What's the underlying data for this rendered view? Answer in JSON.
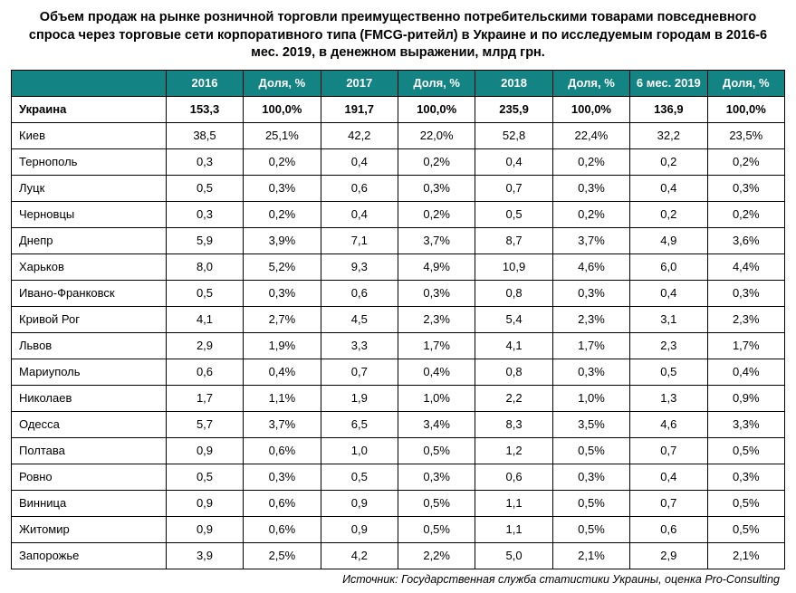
{
  "title": "Объем продаж на рынке розничной торговли преимущественно потребительскими товарами повседневного спроса через торговые сети корпоративного типа (FMCG-ритейл) в Украине и по исследуемым городам в 2016-6 мес. 2019, в денежном выражении, млрд грн.",
  "columns": [
    "",
    "2016",
    "Доля, %",
    "2017",
    "Доля, %",
    "2018",
    "Доля, %",
    "6 мес. 2019",
    "Доля, %"
  ],
  "total_row": {
    "label": "Украина",
    "cells": [
      "153,3",
      "100,0%",
      "191,7",
      "100,0%",
      "235,9",
      "100,0%",
      "136,9",
      "100,0%"
    ]
  },
  "rows": [
    {
      "label": "Киев",
      "cells": [
        "38,5",
        "25,1%",
        "42,2",
        "22,0%",
        "52,8",
        "22,4%",
        "32,2",
        "23,5%"
      ]
    },
    {
      "label": "Тернополь",
      "cells": [
        "0,3",
        "0,2%",
        "0,4",
        "0,2%",
        "0,4",
        "0,2%",
        "0,2",
        "0,2%"
      ]
    },
    {
      "label": "Луцк",
      "cells": [
        "0,5",
        "0,3%",
        "0,6",
        "0,3%",
        "0,7",
        "0,3%",
        "0,4",
        "0,3%"
      ]
    },
    {
      "label": "Черновцы",
      "cells": [
        "0,3",
        "0,2%",
        "0,4",
        "0,2%",
        "0,5",
        "0,2%",
        "0,2",
        "0,2%"
      ]
    },
    {
      "label": "Днепр",
      "cells": [
        "5,9",
        "3,9%",
        "7,1",
        "3,7%",
        "8,7",
        "3,7%",
        "4,9",
        "3,6%"
      ]
    },
    {
      "label": "Харьков",
      "cells": [
        "8,0",
        "5,2%",
        "9,3",
        "4,9%",
        "10,9",
        "4,6%",
        "6,0",
        "4,4%"
      ]
    },
    {
      "label": "Ивано-Франковск",
      "cells": [
        "0,5",
        "0,3%",
        "0,6",
        "0,3%",
        "0,8",
        "0,3%",
        "0,4",
        "0,3%"
      ]
    },
    {
      "label": "Кривой Рог",
      "cells": [
        "4,1",
        "2,7%",
        "4,5",
        "2,3%",
        "5,4",
        "2,3%",
        "3,1",
        "2,3%"
      ]
    },
    {
      "label": "Львов",
      "cells": [
        "2,9",
        "1,9%",
        "3,3",
        "1,7%",
        "4,1",
        "1,7%",
        "2,3",
        "1,7%"
      ]
    },
    {
      "label": "Мариуполь",
      "cells": [
        "0,6",
        "0,4%",
        "0,7",
        "0,4%",
        "0,8",
        "0,3%",
        "0,5",
        "0,4%"
      ]
    },
    {
      "label": "Николаев",
      "cells": [
        "1,7",
        "1,1%",
        "1,9",
        "1,0%",
        "2,2",
        "1,0%",
        "1,3",
        "0,9%"
      ]
    },
    {
      "label": "Одесса",
      "cells": [
        "5,7",
        "3,7%",
        "6,5",
        "3,4%",
        "8,3",
        "3,5%",
        "4,6",
        "3,3%"
      ]
    },
    {
      "label": "Полтава",
      "cells": [
        "0,9",
        "0,6%",
        "1,0",
        "0,5%",
        "1,2",
        "0,5%",
        "0,7",
        "0,5%"
      ]
    },
    {
      "label": "Ровно",
      "cells": [
        "0,5",
        "0,3%",
        "0,5",
        "0,3%",
        "0,6",
        "0,3%",
        "0,4",
        "0,3%"
      ]
    },
    {
      "label": "Винница",
      "cells": [
        "0,9",
        "0,6%",
        "0,9",
        "0,5%",
        "1,1",
        "0,5%",
        "0,7",
        "0,5%"
      ]
    },
    {
      "label": "Житомир",
      "cells": [
        "0,9",
        "0,6%",
        "0,9",
        "0,5%",
        "1,1",
        "0,5%",
        "0,6",
        "0,5%"
      ]
    },
    {
      "label": "Запорожье",
      "cells": [
        "3,9",
        "2,5%",
        "4,2",
        "2,2%",
        "5,0",
        "2,1%",
        "2,9",
        "2,1%"
      ]
    }
  ],
  "source": "Источник: Государственная служба статистики Украины, оценка Pro-Consulting",
  "style": {
    "header_bg": "#138383",
    "header_fg": "#ffffff",
    "border_color": "#000000",
    "title_fontsize_pt": 11,
    "cell_fontsize_pt": 10,
    "font_family": "Arial"
  }
}
